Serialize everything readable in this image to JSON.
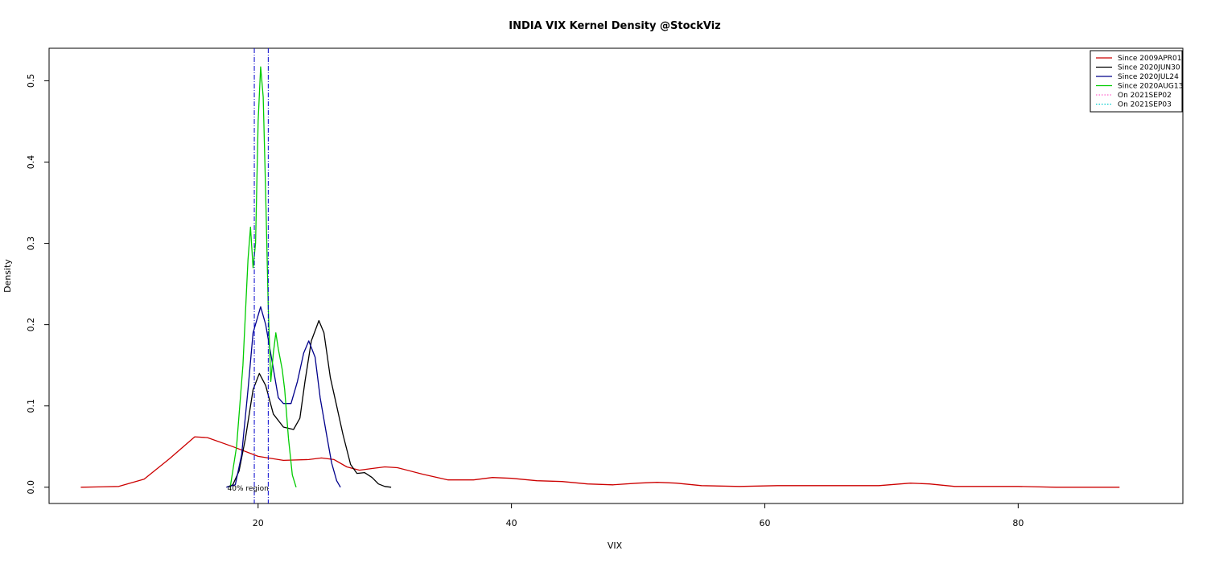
{
  "chart_data": {
    "type": "line",
    "title": "INDIA VIX Kernel Density @StockViz",
    "xlabel": "VIX",
    "ylabel": "Density",
    "xlim": [
      3.5,
      93
    ],
    "ylim": [
      -0.02,
      0.54
    ],
    "x_ticks": [
      20,
      40,
      60,
      80
    ],
    "x_tick_labels": [
      "20",
      "40",
      "60",
      "80"
    ],
    "y_ticks": [
      0.0,
      0.1,
      0.2,
      0.3,
      0.4,
      0.5
    ],
    "y_tick_labels": [
      "0.0",
      "0.1",
      "0.2",
      "0.3",
      "0.4",
      "0.5"
    ],
    "grid": false,
    "legend_position": "top-right",
    "series": [
      {
        "name": "Since 2009APR01",
        "color": "#cc0000",
        "style": "solid",
        "points": [
          [
            6,
            0.0
          ],
          [
            9,
            0.001
          ],
          [
            11,
            0.01
          ],
          [
            13,
            0.035
          ],
          [
            15,
            0.062
          ],
          [
            16,
            0.061
          ],
          [
            18,
            0.05
          ],
          [
            20,
            0.038
          ],
          [
            22,
            0.033
          ],
          [
            24,
            0.034
          ],
          [
            25,
            0.036
          ],
          [
            26,
            0.034
          ],
          [
            27,
            0.025
          ],
          [
            28,
            0.021
          ],
          [
            29,
            0.023
          ],
          [
            30,
            0.025
          ],
          [
            31,
            0.024
          ],
          [
            33,
            0.016
          ],
          [
            35,
            0.009
          ],
          [
            37,
            0.009
          ],
          [
            38.5,
            0.012
          ],
          [
            40,
            0.011
          ],
          [
            42,
            0.008
          ],
          [
            44,
            0.007
          ],
          [
            46,
            0.004
          ],
          [
            48,
            0.003
          ],
          [
            50,
            0.005
          ],
          [
            51.5,
            0.006
          ],
          [
            53,
            0.005
          ],
          [
            55,
            0.002
          ],
          [
            58,
            0.001
          ],
          [
            61,
            0.002
          ],
          [
            64,
            0.002
          ],
          [
            67,
            0.002
          ],
          [
            69,
            0.002
          ],
          [
            71.5,
            0.005
          ],
          [
            73,
            0.004
          ],
          [
            75,
            0.001
          ],
          [
            80,
            0.001
          ],
          [
            83,
            0.0
          ],
          [
            88,
            0.0
          ]
        ]
      },
      {
        "name": "Since 2020JUN30",
        "color": "#000000",
        "style": "solid",
        "points": [
          [
            17.5,
            0.0
          ],
          [
            18,
            0.003
          ],
          [
            18.5,
            0.02
          ],
          [
            19,
            0.06
          ],
          [
            19.6,
            0.12
          ],
          [
            20.1,
            0.14
          ],
          [
            20.6,
            0.125
          ],
          [
            21.2,
            0.09
          ],
          [
            22,
            0.074
          ],
          [
            22.8,
            0.071
          ],
          [
            23.3,
            0.085
          ],
          [
            23.7,
            0.13
          ],
          [
            24.2,
            0.18
          ],
          [
            24.8,
            0.205
          ],
          [
            25.2,
            0.19
          ],
          [
            25.7,
            0.135
          ],
          [
            26.2,
            0.1
          ],
          [
            26.7,
            0.065
          ],
          [
            27.3,
            0.028
          ],
          [
            27.8,
            0.017
          ],
          [
            28.4,
            0.018
          ],
          [
            29,
            0.012
          ],
          [
            29.5,
            0.004
          ],
          [
            30,
            0.001
          ],
          [
            30.5,
            0.0
          ]
        ]
      },
      {
        "name": "Since 2020JUL24",
        "color": "#00008b",
        "style": "solid",
        "points": [
          [
            17.5,
            0.0
          ],
          [
            18.2,
            0.003
          ],
          [
            18.7,
            0.04
          ],
          [
            19.2,
            0.12
          ],
          [
            19.6,
            0.19
          ],
          [
            20.2,
            0.222
          ],
          [
            20.6,
            0.2
          ],
          [
            21.1,
            0.155
          ],
          [
            21.6,
            0.11
          ],
          [
            22,
            0.103
          ],
          [
            22.6,
            0.103
          ],
          [
            23.1,
            0.13
          ],
          [
            23.6,
            0.165
          ],
          [
            24,
            0.18
          ],
          [
            24.5,
            0.16
          ],
          [
            24.9,
            0.11
          ],
          [
            25.4,
            0.065
          ],
          [
            25.8,
            0.03
          ],
          [
            26.2,
            0.008
          ],
          [
            26.5,
            0.0
          ]
        ]
      },
      {
        "name": "Since 2020AUG13",
        "color": "#00cc00",
        "style": "solid",
        "points": [
          [
            17.8,
            0.0
          ],
          [
            18.3,
            0.05
          ],
          [
            18.8,
            0.15
          ],
          [
            19.2,
            0.28
          ],
          [
            19.4,
            0.32
          ],
          [
            19.6,
            0.27
          ],
          [
            19.8,
            0.3
          ],
          [
            20,
            0.45
          ],
          [
            20.2,
            0.517
          ],
          [
            20.4,
            0.48
          ],
          [
            20.6,
            0.36
          ],
          [
            20.8,
            0.22
          ],
          [
            21,
            0.13
          ],
          [
            21.2,
            0.165
          ],
          [
            21.4,
            0.19
          ],
          [
            21.6,
            0.17
          ],
          [
            21.9,
            0.145
          ],
          [
            22.1,
            0.12
          ],
          [
            22.4,
            0.06
          ],
          [
            22.7,
            0.015
          ],
          [
            23,
            0.0
          ]
        ]
      },
      {
        "name": "On 2021SEP02",
        "color": "#ff66cc",
        "style": "dotted",
        "x": 19.7
      },
      {
        "name": "On 2021SEP03",
        "color": "#00cccc",
        "style": "dotted",
        "x": 20.8
      }
    ],
    "annotations": [
      {
        "text": "40% region",
        "x": 19.2,
        "y": 0.0
      }
    ]
  }
}
